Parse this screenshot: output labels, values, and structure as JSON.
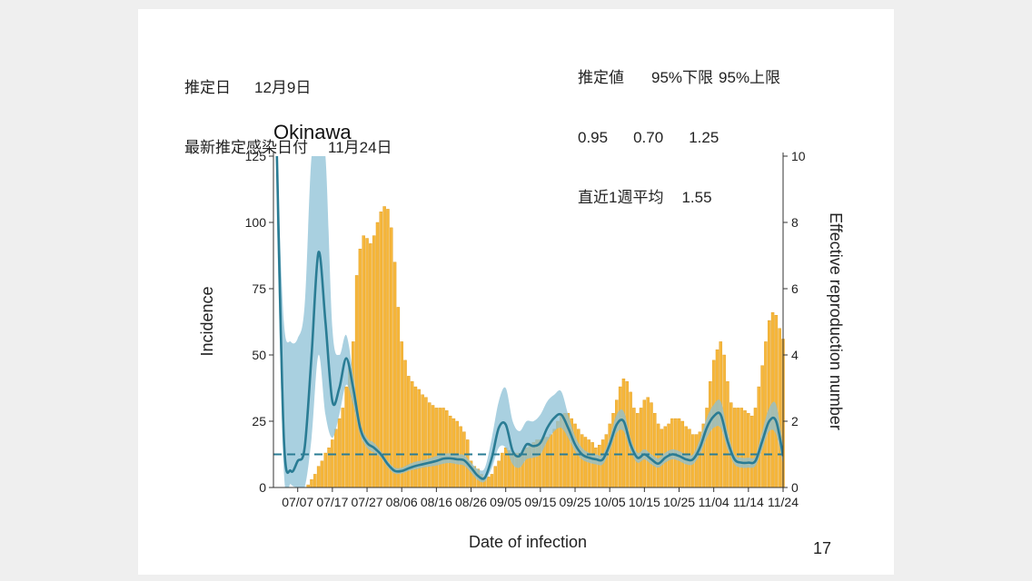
{
  "header": {
    "estimate_date_label": "推定日",
    "estimate_date_value": "12月9日",
    "latest_infection_label": "最新推定感染日付",
    "latest_infection_value": "11月24日",
    "estimate_header": "推定値",
    "lower_header": "95%下限",
    "upper_header": "95%上限",
    "estimate_value": "0.95",
    "lower_value": "0.70",
    "upper_value": "1.25",
    "weekly_avg_label": "直近1週平均",
    "weekly_avg_value": "1.55"
  },
  "page_number": "17",
  "chart_data": {
    "type": "bar+line",
    "title": "Okinawa",
    "xlabel": "Date of infection",
    "ylabel": "Incidence",
    "ylabel_right": "Effective reproduction number",
    "xlim": [
      "06/30",
      "11/24"
    ],
    "ylim": [
      0,
      125
    ],
    "ylim_right": [
      0,
      10
    ],
    "x_ticks": [
      "07/07",
      "07/17",
      "07/27",
      "08/06",
      "08/16",
      "08/26",
      "09/05",
      "09/15",
      "09/25",
      "10/05",
      "10/15",
      "10/25",
      "11/04",
      "11/14",
      "11/24"
    ],
    "y_ticks": [
      0,
      25,
      50,
      75,
      100,
      125
    ],
    "y_ticks_right": [
      0,
      2,
      4,
      6,
      8,
      10
    ],
    "reference_line_right": 1,
    "grid": false,
    "colors": {
      "bars": "#f6b73c",
      "bar_edge": "#e09a1a",
      "rt_line": "#2a7c94",
      "ci_band": "#8cc0d6",
      "reference_line": "#2a7c94"
    },
    "incidence": {
      "dates": [
        "07/10",
        "07/11",
        "07/12",
        "07/13",
        "07/14",
        "07/15",
        "07/16",
        "07/17",
        "07/18",
        "07/19",
        "07/20",
        "07/21",
        "07/22",
        "07/23",
        "07/24",
        "07/25",
        "07/26",
        "07/27",
        "07/28",
        "07/29",
        "07/30",
        "07/31",
        "08/01",
        "08/02",
        "08/03",
        "08/04",
        "08/05",
        "08/06",
        "08/07",
        "08/08",
        "08/09",
        "08/10",
        "08/11",
        "08/12",
        "08/13",
        "08/14",
        "08/15",
        "08/16",
        "08/17",
        "08/18",
        "08/19",
        "08/20",
        "08/21",
        "08/22",
        "08/23",
        "08/24",
        "08/25",
        "08/26",
        "08/27",
        "08/28",
        "08/29",
        "08/30",
        "08/31",
        "09/01",
        "09/02",
        "09/03",
        "09/04",
        "09/05",
        "09/06",
        "09/07",
        "09/08",
        "09/09",
        "09/10",
        "09/11",
        "09/12",
        "09/13",
        "09/14",
        "09/15",
        "09/16",
        "09/17",
        "09/18",
        "09/19",
        "09/20",
        "09/21",
        "09/22",
        "09/23",
        "09/24",
        "09/25",
        "09/26",
        "09/27",
        "09/28",
        "09/29",
        "09/30",
        "10/01",
        "10/02",
        "10/03",
        "10/04",
        "10/05",
        "10/06",
        "10/07",
        "10/08",
        "10/09",
        "10/10",
        "10/11",
        "10/12",
        "10/13",
        "10/14",
        "10/15",
        "10/16",
        "10/17",
        "10/18",
        "10/19",
        "10/20",
        "10/21",
        "10/22",
        "10/23",
        "10/24",
        "10/25",
        "10/26",
        "10/27",
        "10/28",
        "10/29",
        "10/30",
        "10/31",
        "11/01",
        "11/02",
        "11/03",
        "11/04",
        "11/05",
        "11/06",
        "11/07",
        "11/08",
        "11/09",
        "11/10",
        "11/11",
        "11/12",
        "11/13",
        "11/14",
        "11/15",
        "11/16",
        "11/17",
        "11/18",
        "11/19",
        "11/20",
        "11/21",
        "11/22",
        "11/23",
        "11/24"
      ],
      "values": [
        1,
        3,
        5,
        8,
        10,
        13,
        15,
        18,
        22,
        26,
        30,
        38,
        45,
        55,
        80,
        90,
        95,
        94,
        92,
        95,
        100,
        104,
        106,
        105,
        98,
        85,
        68,
        55,
        48,
        42,
        40,
        38,
        37,
        35,
        34,
        32,
        31,
        30,
        30,
        30,
        29,
        27,
        26,
        25,
        23,
        21,
        18,
        10,
        8,
        7,
        5,
        4,
        4,
        5,
        8,
        10,
        13,
        15,
        14,
        13,
        13,
        13,
        14,
        15,
        16,
        17,
        18,
        18,
        19,
        19,
        20,
        22,
        25,
        27,
        28,
        28,
        26,
        24,
        22,
        20,
        19,
        18,
        17,
        15,
        16,
        18,
        20,
        24,
        28,
        33,
        38,
        41,
        40,
        36,
        30,
        28,
        30,
        33,
        34,
        32,
        28,
        24,
        22,
        23,
        24,
        26,
        26,
        26,
        25,
        23,
        22,
        20,
        20,
        21,
        24,
        30,
        40,
        48,
        52,
        55,
        50,
        40,
        32,
        30,
        30,
        30,
        29,
        28,
        27,
        30,
        38,
        46,
        55,
        63,
        66,
        65,
        60,
        56
      ]
    },
    "rt": {
      "dates": [
        "07/01",
        "07/03",
        "07/05",
        "07/07",
        "07/09",
        "07/11",
        "07/13",
        "07/15",
        "07/17",
        "07/19",
        "07/21",
        "07/23",
        "07/25",
        "07/27",
        "07/29",
        "07/31",
        "08/02",
        "08/04",
        "08/06",
        "08/08",
        "08/10",
        "08/12",
        "08/14",
        "08/16",
        "08/18",
        "08/20",
        "08/22",
        "08/24",
        "08/26",
        "08/28",
        "08/30",
        "09/01",
        "09/03",
        "09/05",
        "09/07",
        "09/09",
        "09/11",
        "09/13",
        "09/15",
        "09/17",
        "09/19",
        "09/21",
        "09/23",
        "09/25",
        "09/27",
        "09/29",
        "10/01",
        "10/03",
        "10/05",
        "10/07",
        "10/09",
        "10/11",
        "10/13",
        "10/15",
        "10/17",
        "10/19",
        "10/21",
        "10/23",
        "10/25",
        "10/27",
        "10/29",
        "10/31",
        "11/02",
        "11/04",
        "11/06",
        "11/08",
        "11/10",
        "11/12",
        "11/14",
        "11/16",
        "11/18",
        "11/20",
        "11/22",
        "11/24"
      ],
      "estimate": [
        10,
        1.5,
        0.5,
        0.8,
        1.2,
        4,
        7.1,
        5,
        2.6,
        3.0,
        3.9,
        3.0,
        1.8,
        1.35,
        1.2,
        1.0,
        0.7,
        0.5,
        0.5,
        0.58,
        0.65,
        0.7,
        0.75,
        0.8,
        0.87,
        0.88,
        0.85,
        0.82,
        0.6,
        0.35,
        0.3,
        0.9,
        1.8,
        1.9,
        1.1,
        0.95,
        1.3,
        1.25,
        1.35,
        1.8,
        2.1,
        2.2,
        1.8,
        1.3,
        1.0,
        0.9,
        0.85,
        0.85,
        1.3,
        1.9,
        2.0,
        1.3,
        0.9,
        1.0,
        0.85,
        0.72,
        0.9,
        1.0,
        0.95,
        0.85,
        0.85,
        1.2,
        1.8,
        2.15,
        2.2,
        1.4,
        0.85,
        0.75,
        0.75,
        0.8,
        1.4,
        2.0,
        2.0,
        0.95
      ],
      "lower": [
        8,
        0.5,
        0.1,
        0,
        0,
        1.5,
        4,
        2.2,
        1.5,
        2.2,
        3.1,
        2.5,
        1.6,
        1.2,
        1.05,
        0.9,
        0.6,
        0.42,
        0.42,
        0.5,
        0.55,
        0.6,
        0.63,
        0.66,
        0.72,
        0.74,
        0.7,
        0.66,
        0.45,
        0.22,
        0.18,
        0.6,
        1.2,
        1.2,
        0.7,
        0.6,
        0.85,
        0.9,
        1.0,
        1.4,
        1.7,
        1.8,
        1.5,
        1.1,
        0.85,
        0.75,
        0.7,
        0.7,
        1.1,
        1.65,
        1.7,
        1.1,
        0.75,
        0.85,
        0.7,
        0.6,
        0.75,
        0.85,
        0.8,
        0.7,
        0.7,
        1.0,
        1.5,
        1.8,
        1.8,
        1.15,
        0.7,
        0.6,
        0.6,
        0.65,
        1.15,
        1.7,
        1.6,
        0.7
      ],
      "upper": [
        10,
        5,
        4.4,
        4.5,
        5.5,
        10,
        10,
        10,
        4.8,
        4.0,
        4.6,
        3.4,
        2.0,
        1.5,
        1.35,
        1.1,
        0.8,
        0.6,
        0.6,
        0.7,
        0.78,
        0.82,
        0.88,
        0.95,
        1.02,
        1.03,
        1.0,
        0.98,
        0.75,
        0.55,
        0.6,
        1.5,
        2.6,
        3.0,
        2.0,
        1.7,
        2.0,
        2.0,
        2.2,
        2.6,
        2.8,
        2.9,
        2.2,
        1.55,
        1.2,
        1.05,
        1.0,
        1.0,
        1.5,
        2.2,
        2.3,
        1.5,
        1.05,
        1.15,
        1.0,
        0.88,
        1.05,
        1.15,
        1.1,
        1.0,
        1.0,
        1.45,
        2.1,
        2.5,
        2.6,
        1.7,
        1.0,
        0.9,
        0.9,
        0.95,
        1.7,
        2.4,
        2.5,
        1.25
      ]
    }
  }
}
